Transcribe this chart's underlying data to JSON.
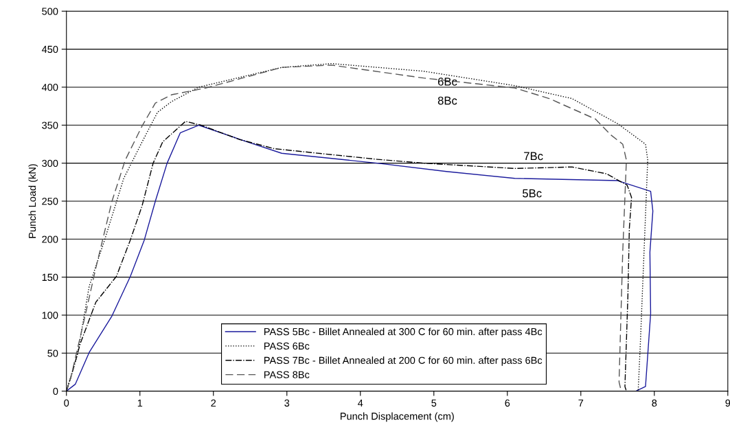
{
  "chart_data": {
    "type": "line",
    "xlabel": "Punch Displacement (cm)",
    "ylabel": "Punch Load (kN)",
    "xlim": [
      0,
      9
    ],
    "ylim": [
      0,
      500
    ],
    "xticks": [
      0,
      1,
      2,
      3,
      4,
      5,
      6,
      7,
      8,
      9
    ],
    "yticks": [
      0,
      50,
      100,
      150,
      200,
      250,
      300,
      350,
      400,
      450,
      500
    ],
    "grid": "y",
    "legend": "bottom",
    "series": [
      {
        "name": "PASS 5Bc - Billet Annealed at 300 C for 60 min. after pass 4Bc",
        "color": "#1a1a9c",
        "line_style": "solid",
        "x": [
          0,
          0.12,
          0.31,
          0.62,
          0.87,
          1.06,
          1.21,
          1.37,
          1.55,
          1.8,
          2.46,
          2.93,
          4.23,
          5.17,
          6.1,
          7.5,
          7.95,
          7.98,
          7.94,
          7.95,
          7.88,
          7.75
        ],
        "values": [
          0,
          9,
          51,
          99,
          151,
          199,
          250,
          300,
          340,
          350,
          328,
          313,
          300,
          289,
          280,
          277,
          263,
          237,
          183,
          102,
          6,
          0
        ]
      },
      {
        "name": "PASS 6Bc",
        "color": "#000000",
        "line_style": "dotted",
        "x": [
          0,
          0.15,
          0.31,
          0.52,
          0.78,
          1.03,
          1.24,
          1.43,
          1.8,
          2.93,
          3.61,
          4.86,
          6.1,
          6.88,
          7.5,
          7.88,
          7.91,
          7.86,
          7.81,
          7.78
        ],
        "values": [
          0,
          48,
          138,
          199,
          280,
          328,
          367,
          381,
          400,
          426,
          431,
          421,
          402,
          385,
          352,
          325,
          304,
          183,
          63,
          0
        ]
      },
      {
        "name": "PASS 7Bc - Billet Annealed at 200 C for 60 min. after pass 6Bc",
        "color": "#000000",
        "line_style": "dashdot",
        "x": [
          0,
          0.06,
          0.19,
          0.4,
          0.68,
          0.87,
          1.03,
          1.18,
          1.31,
          1.62,
          1.83,
          2.36,
          2.83,
          4.23,
          4.86,
          6.1,
          6.88,
          7.35,
          7.63,
          7.69,
          7.66,
          7.64,
          7.6,
          7.62
        ],
        "values": [
          0,
          18,
          63,
          117,
          151,
          199,
          244,
          300,
          328,
          355,
          350,
          331,
          319,
          305,
          300,
          293,
          295,
          286,
          271,
          255,
          214,
          124,
          6,
          0
        ]
      },
      {
        "name": "PASS 8Bc",
        "color": "#555555",
        "line_style": "dashed",
        "x": [
          0,
          0.06,
          0.24,
          0.4,
          0.62,
          0.8,
          1.03,
          1.21,
          1.43,
          1.9,
          2.93,
          3.61,
          4.86,
          6.1,
          6.57,
          7.2,
          7.41,
          7.57,
          7.62,
          7.57,
          7.52,
          7.55
        ],
        "values": [
          0,
          18,
          93,
          162,
          250,
          304,
          349,
          379,
          390,
          399,
          426,
          429,
          412,
          399,
          385,
          358,
          337,
          325,
          304,
          183,
          12,
          0
        ]
      }
    ],
    "annotations": [
      "6Bc",
      "8Bc",
      "7Bc",
      "5Bc"
    ]
  }
}
